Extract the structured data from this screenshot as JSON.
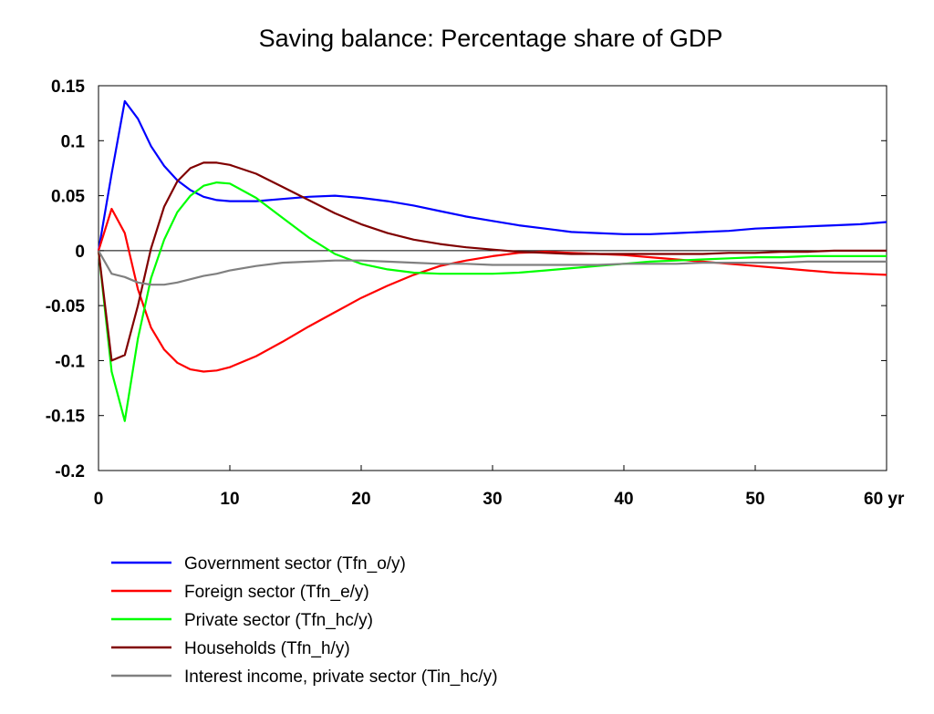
{
  "chart_data": {
    "type": "line",
    "title": "Saving balance: Percentage share of GDP",
    "xlabel": "",
    "ylabel": "",
    "xlim": [
      0,
      60
    ],
    "ylim": [
      -0.2,
      0.15
    ],
    "x_ticks": [
      0,
      10,
      20,
      30,
      40,
      50,
      60
    ],
    "x_tick_labels": [
      "0",
      "10",
      "20",
      "30",
      "40",
      "50",
      "60 yr"
    ],
    "y_ticks": [
      0.15,
      0.1,
      0.05,
      0,
      -0.05,
      -0.1,
      -0.15,
      -0.2
    ],
    "y_tick_labels": [
      "0.15",
      "0.1",
      "0.05",
      "0",
      "-0.05",
      "-0.1",
      "-0.15",
      "-0.2"
    ],
    "grid": false,
    "zero_line": true,
    "legend_position": "bottom",
    "series": [
      {
        "name": "Government sector (Tfn_o/y)",
        "color": "#0000ff",
        "points": [
          [
            0,
            0
          ],
          [
            1,
            0.07
          ],
          [
            2,
            0.136
          ],
          [
            3,
            0.12
          ],
          [
            4,
            0.095
          ],
          [
            5,
            0.077
          ],
          [
            6,
            0.064
          ],
          [
            7,
            0.055
          ],
          [
            8,
            0.049
          ],
          [
            9,
            0.046
          ],
          [
            10,
            0.045
          ],
          [
            12,
            0.045
          ],
          [
            14,
            0.047
          ],
          [
            16,
            0.049
          ],
          [
            18,
            0.05
          ],
          [
            20,
            0.048
          ],
          [
            22,
            0.045
          ],
          [
            24,
            0.041
          ],
          [
            26,
            0.036
          ],
          [
            28,
            0.031
          ],
          [
            30,
            0.027
          ],
          [
            32,
            0.023
          ],
          [
            34,
            0.02
          ],
          [
            36,
            0.017
          ],
          [
            38,
            0.016
          ],
          [
            40,
            0.015
          ],
          [
            42,
            0.015
          ],
          [
            44,
            0.016
          ],
          [
            46,
            0.017
          ],
          [
            48,
            0.018
          ],
          [
            50,
            0.02
          ],
          [
            52,
            0.021
          ],
          [
            54,
            0.022
          ],
          [
            56,
            0.023
          ],
          [
            58,
            0.024
          ],
          [
            60,
            0.026
          ]
        ]
      },
      {
        "name": "Foreign sector (Tfn_e/y)",
        "color": "#ff0000",
        "points": [
          [
            0,
            0
          ],
          [
            1,
            0.038
          ],
          [
            2,
            0.016
          ],
          [
            3,
            -0.035
          ],
          [
            4,
            -0.07
          ],
          [
            5,
            -0.09
          ],
          [
            6,
            -0.102
          ],
          [
            7,
            -0.108
          ],
          [
            8,
            -0.11
          ],
          [
            9,
            -0.109
          ],
          [
            10,
            -0.106
          ],
          [
            12,
            -0.096
          ],
          [
            14,
            -0.083
          ],
          [
            16,
            -0.069
          ],
          [
            18,
            -0.056
          ],
          [
            20,
            -0.043
          ],
          [
            22,
            -0.032
          ],
          [
            24,
            -0.022
          ],
          [
            26,
            -0.014
          ],
          [
            28,
            -0.009
          ],
          [
            30,
            -0.005
          ],
          [
            32,
            -0.002
          ],
          [
            34,
            -0.001
          ],
          [
            36,
            -0.002
          ],
          [
            38,
            -0.003
          ],
          [
            40,
            -0.004
          ],
          [
            42,
            -0.006
          ],
          [
            44,
            -0.008
          ],
          [
            46,
            -0.01
          ],
          [
            48,
            -0.012
          ],
          [
            50,
            -0.014
          ],
          [
            52,
            -0.016
          ],
          [
            54,
            -0.018
          ],
          [
            56,
            -0.02
          ],
          [
            58,
            -0.021
          ],
          [
            60,
            -0.022
          ]
        ]
      },
      {
        "name": "Private sector (Tfn_hc/y)",
        "color": "#00ff00",
        "points": [
          [
            0,
            0
          ],
          [
            1,
            -0.11
          ],
          [
            2,
            -0.155
          ],
          [
            3,
            -0.08
          ],
          [
            4,
            -0.025
          ],
          [
            5,
            0.01
          ],
          [
            6,
            0.035
          ],
          [
            7,
            0.05
          ],
          [
            8,
            0.059
          ],
          [
            9,
            0.062
          ],
          [
            10,
            0.061
          ],
          [
            12,
            0.048
          ],
          [
            14,
            0.03
          ],
          [
            16,
            0.012
          ],
          [
            18,
            -0.003
          ],
          [
            20,
            -0.012
          ],
          [
            22,
            -0.017
          ],
          [
            24,
            -0.02
          ],
          [
            26,
            -0.021
          ],
          [
            28,
            -0.021
          ],
          [
            30,
            -0.021
          ],
          [
            32,
            -0.02
          ],
          [
            34,
            -0.018
          ],
          [
            36,
            -0.016
          ],
          [
            38,
            -0.014
          ],
          [
            40,
            -0.012
          ],
          [
            42,
            -0.01
          ],
          [
            44,
            -0.009
          ],
          [
            46,
            -0.008
          ],
          [
            48,
            -0.007
          ],
          [
            50,
            -0.006
          ],
          [
            52,
            -0.006
          ],
          [
            54,
            -0.005
          ],
          [
            56,
            -0.005
          ],
          [
            58,
            -0.005
          ],
          [
            60,
            -0.005
          ]
        ]
      },
      {
        "name": "Households (Tfn_h/y)",
        "color": "#800000",
        "points": [
          [
            0,
            0
          ],
          [
            1,
            -0.1
          ],
          [
            2,
            -0.095
          ],
          [
            3,
            -0.05
          ],
          [
            4,
            0.002
          ],
          [
            5,
            0.04
          ],
          [
            6,
            0.063
          ],
          [
            7,
            0.075
          ],
          [
            8,
            0.08
          ],
          [
            9,
            0.08
          ],
          [
            10,
            0.078
          ],
          [
            12,
            0.07
          ],
          [
            14,
            0.058
          ],
          [
            16,
            0.046
          ],
          [
            18,
            0.034
          ],
          [
            20,
            0.024
          ],
          [
            22,
            0.016
          ],
          [
            24,
            0.01
          ],
          [
            26,
            0.006
          ],
          [
            28,
            0.003
          ],
          [
            30,
            0.001
          ],
          [
            32,
            -0.001
          ],
          [
            34,
            -0.002
          ],
          [
            36,
            -0.003
          ],
          [
            38,
            -0.003
          ],
          [
            40,
            -0.003
          ],
          [
            42,
            -0.003
          ],
          [
            44,
            -0.003
          ],
          [
            46,
            -0.003
          ],
          [
            48,
            -0.002
          ],
          [
            50,
            -0.002
          ],
          [
            52,
            -0.001
          ],
          [
            54,
            -0.001
          ],
          [
            56,
            0
          ],
          [
            58,
            0
          ],
          [
            60,
            0
          ]
        ]
      },
      {
        "name": "Interest income, private sector (Tin_hc/y)",
        "color": "#808080",
        "points": [
          [
            0,
            0
          ],
          [
            1,
            -0.021
          ],
          [
            2,
            -0.024
          ],
          [
            3,
            -0.029
          ],
          [
            4,
            -0.031
          ],
          [
            5,
            -0.031
          ],
          [
            6,
            -0.029
          ],
          [
            7,
            -0.026
          ],
          [
            8,
            -0.023
          ],
          [
            9,
            -0.021
          ],
          [
            10,
            -0.018
          ],
          [
            12,
            -0.014
          ],
          [
            14,
            -0.011
          ],
          [
            16,
            -0.01
          ],
          [
            18,
            -0.009
          ],
          [
            20,
            -0.009
          ],
          [
            22,
            -0.01
          ],
          [
            24,
            -0.011
          ],
          [
            26,
            -0.012
          ],
          [
            28,
            -0.012
          ],
          [
            30,
            -0.013
          ],
          [
            32,
            -0.013
          ],
          [
            34,
            -0.013
          ],
          [
            36,
            -0.013
          ],
          [
            38,
            -0.013
          ],
          [
            40,
            -0.012
          ],
          [
            42,
            -0.012
          ],
          [
            44,
            -0.012
          ],
          [
            46,
            -0.011
          ],
          [
            48,
            -0.011
          ],
          [
            50,
            -0.011
          ],
          [
            52,
            -0.011
          ],
          [
            54,
            -0.01
          ],
          [
            56,
            -0.01
          ],
          [
            58,
            -0.01
          ],
          [
            60,
            -0.01
          ]
        ]
      }
    ]
  }
}
